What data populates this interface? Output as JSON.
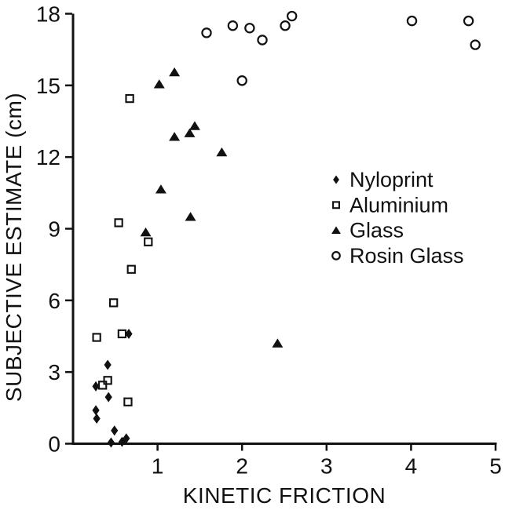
{
  "figure": {
    "background": "#ffffff",
    "ink_color": "#111111"
  },
  "chart_data": {
    "type": "scatter",
    "title": "",
    "xlabel": "KINETIC FRICTION",
    "ylabel": "SUBJECTIVE ESTIMATE (cm)",
    "xlim": [
      0,
      5
    ],
    "ylim": [
      0,
      18
    ],
    "xticks": [
      1,
      2,
      3,
      4,
      5
    ],
    "yticks": [
      0,
      3,
      6,
      9,
      12,
      15,
      18
    ],
    "grid": false,
    "legend_position": "center-right",
    "series": [
      {
        "name": "Nyloprint",
        "marker": "diamond-filled",
        "points": [
          [
            0.27,
            2.4
          ],
          [
            0.27,
            1.4
          ],
          [
            0.28,
            1.05
          ],
          [
            0.41,
            3.3
          ],
          [
            0.42,
            1.95
          ],
          [
            0.45,
            0.05
          ],
          [
            0.49,
            0.55
          ],
          [
            0.58,
            0.08
          ],
          [
            0.63,
            0.22
          ],
          [
            0.66,
            4.6
          ]
        ]
      },
      {
        "name": "Aluminium",
        "marker": "square-open",
        "points": [
          [
            0.28,
            4.45
          ],
          [
            0.35,
            2.45
          ],
          [
            0.41,
            2.65
          ],
          [
            0.48,
            5.9
          ],
          [
            0.54,
            9.25
          ],
          [
            0.58,
            4.6
          ],
          [
            0.65,
            1.75
          ],
          [
            0.67,
            14.45
          ],
          [
            0.69,
            7.3
          ],
          [
            0.89,
            8.45
          ]
        ]
      },
      {
        "name": "Glass",
        "marker": "triangle-filled",
        "points": [
          [
            0.86,
            8.85
          ],
          [
            1.02,
            15.05
          ],
          [
            1.04,
            10.65
          ],
          [
            1.2,
            15.55
          ],
          [
            1.2,
            12.85
          ],
          [
            1.38,
            13.0
          ],
          [
            1.44,
            13.3
          ],
          [
            1.39,
            9.5
          ],
          [
            1.76,
            12.2
          ],
          [
            2.42,
            4.2
          ]
        ]
      },
      {
        "name": "Rosin Glass",
        "marker": "circle-open",
        "points": [
          [
            1.58,
            17.2
          ],
          [
            1.89,
            17.5
          ],
          [
            2.0,
            15.2
          ],
          [
            2.09,
            17.4
          ],
          [
            2.24,
            16.9
          ],
          [
            2.51,
            17.5
          ],
          [
            2.59,
            17.9
          ],
          [
            4.01,
            17.7
          ],
          [
            4.68,
            17.7
          ],
          [
            4.76,
            16.7
          ]
        ]
      }
    ]
  }
}
